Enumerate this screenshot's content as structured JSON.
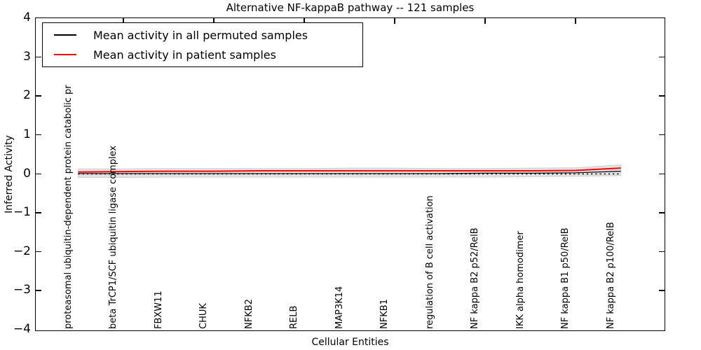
{
  "title": "Alternative NF-kappaB pathway -- 121 samples",
  "axes": {
    "xlabel": "Cellular Entities",
    "ylabel": "Inferred Activity",
    "ytick_labels": [
      "4",
      "3",
      "2",
      "1",
      "0",
      "−1",
      "−2",
      "−3",
      "−4"
    ]
  },
  "legend": {
    "items": [
      {
        "label": "Mean activity in all permuted samples",
        "color": "#000000"
      },
      {
        "label": "Mean activity in patient samples",
        "color": "#ff0000"
      }
    ]
  },
  "chart_data": {
    "type": "line",
    "title": "Alternative NF-kappaB pathway -- 121 samples",
    "xlabel": "Cellular Entities",
    "ylabel": "Inferred Activity",
    "ylim": [
      -4,
      4
    ],
    "grid": false,
    "legend_position": "upper left",
    "categories": [
      "proteasomal ubiquitin-dependent protein catabolic pr",
      "beta TrCP1/SCF ubiquitin ligase complex",
      "FBXW11",
      "CHUK",
      "NFKB2",
      "RELB",
      "MAP3K14",
      "NFKB1",
      "regulation of B cell activation",
      "NF kappa B2 p52/RelB",
      "IKK alpha homodimer",
      "NF kappa B1 p50/RelB",
      "NF kappa B2 p100/RelB"
    ],
    "series": [
      {
        "name": "Mean activity in all permuted samples",
        "color": "#000000",
        "style": "solid",
        "values": [
          0.01,
          0.01,
          0.01,
          0.01,
          0.01,
          0.01,
          0.01,
          0.01,
          0.01,
          0.02,
          0.02,
          0.03,
          0.07
        ]
      },
      {
        "name": "Mean activity in patient samples",
        "color": "#ff0000",
        "style": "solid",
        "values": [
          0.05,
          0.06,
          0.07,
          0.07,
          0.08,
          0.08,
          0.08,
          0.08,
          0.08,
          0.08,
          0.08,
          0.09,
          0.15
        ]
      },
      {
        "name": "zero reference line",
        "color": "#000000",
        "style": "dotted",
        "values": [
          0,
          0,
          0,
          0,
          0,
          0,
          0,
          0,
          0,
          0,
          0,
          0,
          0
        ]
      }
    ],
    "band": {
      "name": "permuted samples spread",
      "color": "#e3e3e3",
      "edge_color": "#cfcfcf",
      "upper": [
        0.13,
        0.13,
        0.14,
        0.14,
        0.14,
        0.14,
        0.15,
        0.15,
        0.14,
        0.14,
        0.15,
        0.16,
        0.23
      ],
      "lower": [
        -0.09,
        -0.09,
        -0.08,
        -0.08,
        -0.08,
        -0.08,
        -0.08,
        -0.08,
        -0.08,
        -0.08,
        -0.07,
        -0.06,
        -0.04
      ]
    },
    "top_ticks_at_category_indices": [
      1,
      3,
      5,
      7,
      9,
      11
    ]
  }
}
